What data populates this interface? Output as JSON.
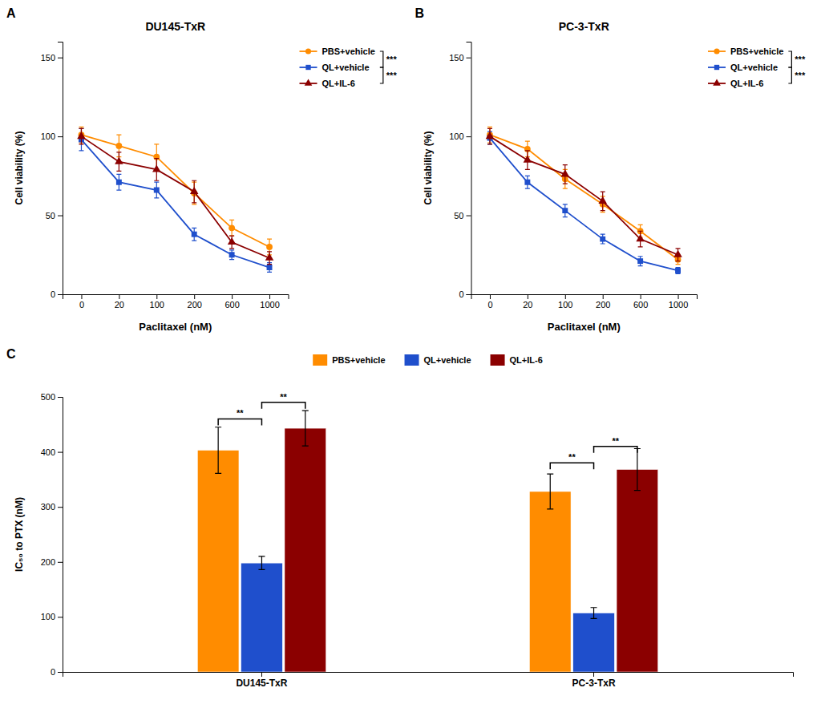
{
  "chart_data": [
    {
      "type": "line",
      "title": "DU145-TxR",
      "panel_label": "A",
      "x_label": "Paclitaxel (nM)",
      "y_label": "Cell viability (%)",
      "categories": [
        "0",
        "20",
        "100",
        "200",
        "600",
        "1000"
      ],
      "series": [
        {
          "name": "PBS+vehicle",
          "color": "#FF8C00",
          "marker": "circle",
          "values": [
            101,
            94,
            87,
            64,
            42,
            30
          ],
          "errors": [
            5,
            7,
            8,
            7,
            5,
            5
          ]
        },
        {
          "name": "QL+vehicle",
          "color": "#1F4FCC",
          "marker": "square",
          "values": [
            98,
            71,
            66,
            38,
            25,
            17
          ],
          "errors": [
            7,
            5,
            5,
            4,
            3,
            3
          ]
        },
        {
          "name": "QL+IL-6",
          "color": "#8B0000",
          "marker": "triangle",
          "values": [
            100,
            84,
            79,
            65,
            33,
            23
          ],
          "errors": [
            5,
            6,
            7,
            7,
            4,
            4
          ]
        }
      ],
      "ylim": [
        0,
        160
      ],
      "yticks": [
        0,
        50,
        100,
        150
      ],
      "grid": false,
      "legend": "right",
      "annotations": [
        {
          "text": "***",
          "between": [
            "PBS+vehicle",
            "QL+vehicle"
          ]
        },
        {
          "text": "***",
          "between": [
            "QL+vehicle",
            "QL+IL-6"
          ]
        }
      ]
    },
    {
      "type": "line",
      "title": "PC-3-TxR",
      "panel_label": "B",
      "x_label": "Paclitaxel (nM)",
      "y_label": "Cell viability (%)",
      "categories": [
        "0",
        "20",
        "100",
        "200",
        "600",
        "1000"
      ],
      "series": [
        {
          "name": "PBS+vehicle",
          "color": "#FF8C00",
          "marker": "circle",
          "values": [
            101,
            92,
            73,
            57,
            40,
            22
          ],
          "errors": [
            5,
            5,
            6,
            5,
            4,
            3
          ]
        },
        {
          "name": "QL+vehicle",
          "color": "#1F4FCC",
          "marker": "square",
          "values": [
            99,
            71,
            53,
            35,
            21,
            15
          ],
          "errors": [
            4,
            4,
            4,
            3,
            3,
            2
          ]
        },
        {
          "name": "QL+IL-6",
          "color": "#8B0000",
          "marker": "triangle",
          "values": [
            100,
            85,
            76,
            59,
            35,
            25
          ],
          "errors": [
            5,
            6,
            6,
            6,
            5,
            4
          ]
        }
      ],
      "ylim": [
        0,
        160
      ],
      "yticks": [
        0,
        50,
        100,
        150
      ],
      "grid": false,
      "legend": "right",
      "annotations": [
        {
          "text": "***",
          "between": [
            "PBS+vehicle",
            "QL+vehicle"
          ]
        },
        {
          "text": "***",
          "between": [
            "QL+vehicle",
            "QL+IL-6"
          ]
        }
      ]
    },
    {
      "type": "bar",
      "panel_label": "C",
      "y_label": "IC₅₀ to PTX (nM)",
      "categories": [
        "DU145-TxR",
        "PC-3-TxR"
      ],
      "series": [
        {
          "name": "PBS+vehicle",
          "color": "#FF8C00",
          "values": [
            403,
            328
          ],
          "errors": [
            42,
            32
          ]
        },
        {
          "name": "QL+vehicle",
          "color": "#1F4FCC",
          "values": [
            198,
            107
          ],
          "errors": [
            12,
            10
          ]
        },
        {
          "name": "QL+IL-6",
          "color": "#8B0000",
          "values": [
            443,
            368
          ],
          "errors": [
            32,
            38
          ]
        }
      ],
      "ylim": [
        0,
        500
      ],
      "yticks": [
        0,
        100,
        200,
        300,
        400,
        500
      ],
      "grid": false,
      "legend": "upper center",
      "annotations": [
        {
          "text": "**",
          "category": "DU145-TxR",
          "between": [
            "PBS+vehicle",
            "QL+vehicle"
          ],
          "y": 460
        },
        {
          "text": "**",
          "category": "DU145-TxR",
          "between": [
            "QL+vehicle",
            "QL+IL-6"
          ],
          "y": 490
        },
        {
          "text": "**",
          "category": "PC-3-TxR",
          "between": [
            "PBS+vehicle",
            "QL+vehicle"
          ],
          "y": 380
        },
        {
          "text": "**",
          "category": "PC-3-TxR",
          "between": [
            "QL+vehicle",
            "QL+IL-6"
          ],
          "y": 410
        }
      ]
    }
  ]
}
